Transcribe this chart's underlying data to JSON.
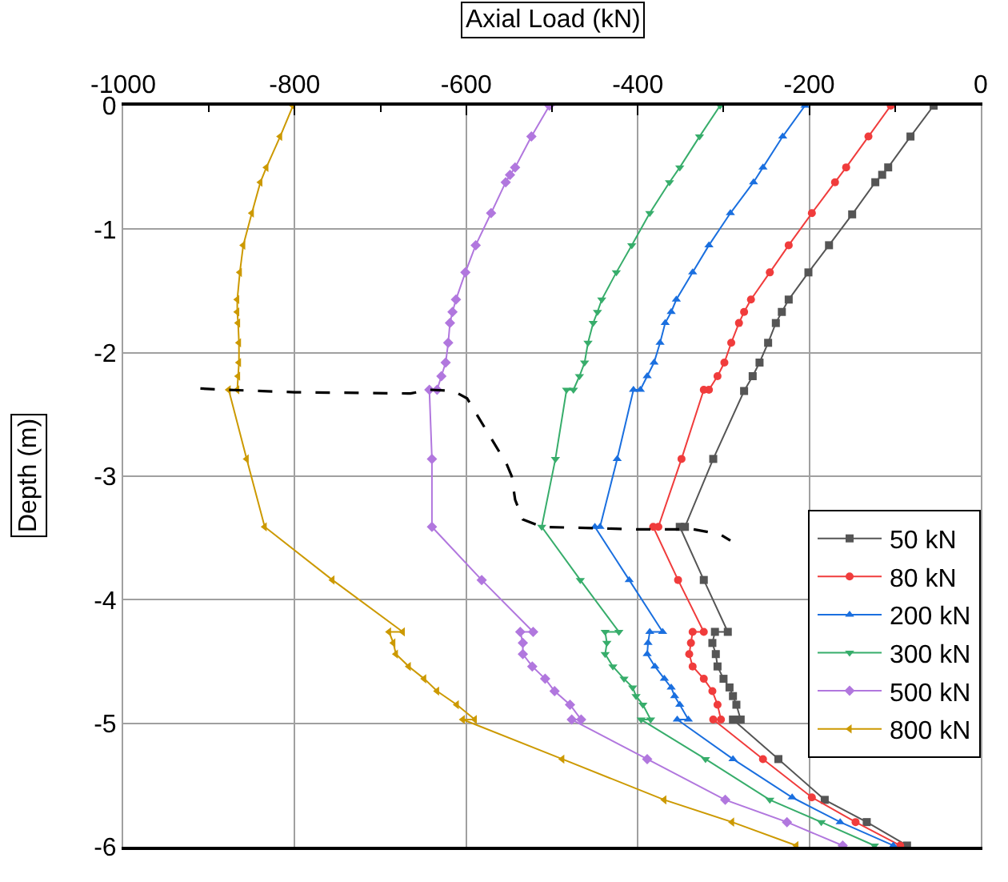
{
  "chart_data": {
    "type": "line",
    "xlabel": "Axial Load (kN)",
    "ylabel": "Depth (m)",
    "xlim": [
      -1000,
      0
    ],
    "xticks": [
      -1000,
      {
        "value": -900,
        "label": null
      },
      -800,
      {
        "value": -700,
        "label": null
      },
      -600,
      {
        "value": -500,
        "label": null
      },
      -400,
      {
        "value": -300,
        "label": null
      },
      -200,
      {
        "value": -100,
        "label": null
      },
      0
    ],
    "ylim": [
      -6,
      0
    ],
    "yticks": [
      -6,
      -5,
      -4,
      -3,
      -2,
      -1,
      0
    ],
    "grid": true,
    "legend": "bottom right",
    "series": [
      {
        "name": "50 kN",
        "color": "#555555",
        "marker": "square",
        "x": [
          -55,
          -82,
          -108,
          -115,
          -123,
          -150,
          -177,
          -201,
          -224,
          -232,
          -239,
          -248,
          -258,
          -266,
          -276,
          -312,
          -345,
          -351,
          -323,
          -295,
          -310,
          -313,
          -309,
          -307,
          -300,
          -293,
          -289,
          -285,
          -280,
          -289,
          -236,
          -182,
          -133,
          -86
        ],
        "values": [
          0,
          -0.25,
          -0.5,
          -0.56,
          -0.62,
          -0.88,
          -1.13,
          -1.35,
          -1.57,
          -1.67,
          -1.76,
          -1.92,
          -2.08,
          -2.19,
          -2.31,
          -2.86,
          -3.41,
          -3.41,
          -3.84,
          -4.26,
          -4.26,
          -4.35,
          -4.44,
          -4.54,
          -4.64,
          -4.71,
          -4.78,
          -4.85,
          -4.97,
          -4.97,
          -5.29,
          -5.62,
          -5.8,
          -5.99
        ]
      },
      {
        "name": "80 kN",
        "color": "#f03c3c",
        "marker": "circle",
        "x": [
          -105,
          -131,
          -157,
          -170,
          -197,
          -224,
          -246,
          -268,
          -276,
          -282,
          -291,
          -299,
          -307,
          -317,
          -323,
          -349,
          -376,
          -382,
          -353,
          -323,
          -336,
          -338,
          -340,
          -336,
          -323,
          -313,
          -307,
          -303,
          -312,
          -254,
          -197,
          -146,
          -94
        ],
        "values": [
          0,
          -0.25,
          -0.5,
          -0.62,
          -0.87,
          -1.13,
          -1.35,
          -1.57,
          -1.67,
          -1.76,
          -1.92,
          -2.08,
          -2.19,
          -2.3,
          -2.3,
          -2.86,
          -3.41,
          -3.41,
          -3.84,
          -4.26,
          -4.26,
          -4.35,
          -4.44,
          -4.54,
          -4.64,
          -4.74,
          -4.85,
          -4.97,
          -4.97,
          -5.29,
          -5.6,
          -5.8,
          -5.99
        ]
      },
      {
        "name": "200 kN",
        "color": "#1a6fdf",
        "marker": "triangle-up",
        "x": [
          -205,
          -231,
          -254,
          -265,
          -292,
          -317,
          -336,
          -355,
          -361,
          -368,
          -374,
          -381,
          -389,
          -397,
          -405,
          -424,
          -444,
          -450,
          -410,
          -371,
          -386,
          -388,
          -389,
          -380,
          -369,
          -361,
          -357,
          -351,
          -341,
          -354,
          -289,
          -220,
          -164,
          -102
        ],
        "values": [
          0,
          -0.25,
          -0.5,
          -0.62,
          -0.87,
          -1.13,
          -1.35,
          -1.57,
          -1.67,
          -1.76,
          -1.92,
          -2.08,
          -2.19,
          -2.3,
          -2.3,
          -2.86,
          -3.41,
          -3.41,
          -3.84,
          -4.26,
          -4.26,
          -4.35,
          -4.44,
          -4.54,
          -4.64,
          -4.71,
          -4.78,
          -4.85,
          -4.97,
          -4.97,
          -5.29,
          -5.6,
          -5.8,
          -5.99
        ]
      },
      {
        "name": "300 kN",
        "color": "#37ad6b",
        "marker": "triangle-down",
        "x": [
          -304,
          -328,
          -351,
          -363,
          -386,
          -407,
          -425,
          -442,
          -447,
          -452,
          -458,
          -462,
          -468,
          -475,
          -483,
          -496,
          -512,
          -467,
          -422,
          -438,
          -436,
          -438,
          -429,
          -416,
          -406,
          -402,
          -394,
          -385,
          -396,
          -321,
          -246,
          -186,
          -124
        ],
        "values": [
          0,
          -0.25,
          -0.5,
          -0.62,
          -0.87,
          -1.13,
          -1.35,
          -1.57,
          -1.67,
          -1.76,
          -1.92,
          -2.08,
          -2.19,
          -2.3,
          -2.3,
          -2.86,
          -3.41,
          -3.84,
          -4.26,
          -4.26,
          -4.35,
          -4.44,
          -4.54,
          -4.64,
          -4.71,
          -4.78,
          -4.85,
          -4.97,
          -4.97,
          -5.29,
          -5.62,
          -5.8,
          -5.99
        ]
      },
      {
        "name": "500 kN",
        "color": "#b177de",
        "marker": "diamond",
        "x": [
          -503,
          -524,
          -543,
          -549,
          -554,
          -571,
          -589,
          -601,
          -612,
          -616,
          -619,
          -621,
          -624,
          -629,
          -634,
          -643,
          -640,
          -640,
          -582,
          -522,
          -537,
          -534,
          -534,
          -523,
          -508,
          -497,
          -479,
          -466,
          -477,
          -389,
          -298,
          -226,
          -161
        ],
        "values": [
          0,
          -0.25,
          -0.5,
          -0.56,
          -0.62,
          -0.87,
          -1.13,
          -1.35,
          -1.57,
          -1.67,
          -1.76,
          -1.92,
          -2.08,
          -2.19,
          -2.3,
          -2.3,
          -2.86,
          -3.41,
          -3.84,
          -4.26,
          -4.26,
          -4.35,
          -4.44,
          -4.54,
          -4.64,
          -4.74,
          -4.85,
          -4.97,
          -4.97,
          -5.29,
          -5.62,
          -5.8,
          -5.99
        ]
      },
      {
        "name": "800 kN",
        "color": "#cc9900",
        "marker": "triangle-left",
        "x": [
          -802,
          -817,
          -833,
          -840,
          -850,
          -860,
          -864,
          -867,
          -867,
          -866,
          -865,
          -865,
          -866,
          -867,
          -877,
          -856,
          -835,
          -756,
          -674,
          -690,
          -685,
          -682,
          -667,
          -649,
          -634,
          -611,
          -590,
          -604,
          -488,
          -369,
          -290,
          -215
        ],
        "values": [
          0,
          -0.25,
          -0.5,
          -0.62,
          -0.87,
          -1.13,
          -1.35,
          -1.57,
          -1.67,
          -1.76,
          -1.92,
          -2.08,
          -2.19,
          -2.3,
          -2.3,
          -2.86,
          -3.41,
          -3.84,
          -4.26,
          -4.26,
          -4.35,
          -4.44,
          -4.54,
          -4.64,
          -4.74,
          -4.85,
          -4.97,
          -4.97,
          -5.29,
          -5.62,
          -5.8,
          -5.99
        ]
      },
      {
        "color": "#000000",
        "marker": "none",
        "line_style": "dashed",
        "x": [
          -910,
          -880,
          -800,
          -665,
          -643,
          -615,
          -599,
          -553,
          -547,
          -543,
          -534,
          -512,
          -400,
          -335,
          -304,
          -292
        ],
        "values": [
          -2.29,
          -2.3,
          -2.32,
          -2.33,
          -2.3,
          -2.31,
          -2.37,
          -2.9,
          -3.0,
          -3.19,
          -3.35,
          -3.41,
          -3.43,
          -3.43,
          -3.47,
          -3.52
        ]
      }
    ]
  }
}
